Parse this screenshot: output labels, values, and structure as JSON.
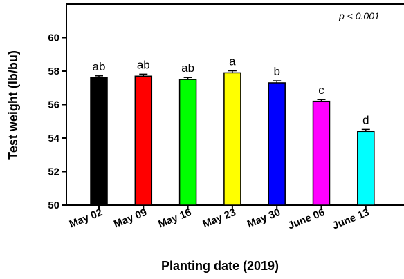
{
  "chart_data": {
    "type": "bar",
    "xlabel": "Planting date (2019)",
    "ylabel": "Test weight (lb/bu)",
    "annotation": "p < 0.001",
    "ylim": [
      50,
      62
    ],
    "yticks": [
      50,
      52,
      54,
      56,
      58,
      60
    ],
    "categories": [
      "May 02",
      "May 09",
      "May 16",
      "May 23",
      "May 30",
      "June 06",
      "June 13"
    ],
    "values": [
      57.6,
      57.7,
      57.5,
      57.9,
      57.3,
      56.2,
      54.4
    ],
    "errors": [
      0.12,
      0.12,
      0.12,
      0.12,
      0.12,
      0.1,
      0.12
    ],
    "labels": [
      "ab",
      "ab",
      "ab",
      "a",
      "b",
      "c",
      "d"
    ],
    "colors": [
      "#000000",
      "#ff0000",
      "#00ff00",
      "#ffff00",
      "#0000ff",
      "#ff00ff",
      "#00ffff"
    ],
    "grid": false
  }
}
